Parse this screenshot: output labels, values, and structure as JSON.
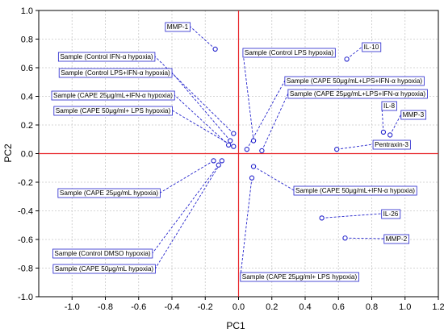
{
  "chart_data": {
    "type": "scatter",
    "title": "",
    "xlabel": "PC1",
    "ylabel": "PC2",
    "xlim": [
      -1.2,
      1.2
    ],
    "ylim": [
      -1.0,
      1.0
    ],
    "xticks": [
      "-1.0",
      "-0.8",
      "-0.6",
      "-0.4",
      "-0.2",
      "0.0",
      "0.2",
      "0.4",
      "0.6",
      "0.8",
      "1.0",
      "1.2"
    ],
    "yticks": [
      "1.0",
      "0.8",
      "0.6",
      "0.4",
      "0.2",
      "0.0",
      "-0.2",
      "-0.4",
      "-0.6",
      "-0.8",
      "-1.0"
    ],
    "grid": true,
    "reference_lines": {
      "x": 0,
      "y": 0,
      "color": "#e8262a"
    },
    "point_color": "#2222cc",
    "points": [
      {
        "label": "MMP-1",
        "x": -0.14,
        "y": 0.73
      },
      {
        "label": "IL-10",
        "x": 0.65,
        "y": 0.66
      },
      {
        "label": "IL-8",
        "x": 0.87,
        "y": 0.15
      },
      {
        "label": "MMP-3",
        "x": 0.91,
        "y": 0.13
      },
      {
        "label": "Pentraxin-3",
        "x": 0.59,
        "y": 0.03
      },
      {
        "label": "IL-26",
        "x": 0.5,
        "y": -0.45
      },
      {
        "label": "MMP-2",
        "x": 0.64,
        "y": -0.59
      },
      {
        "label": "Sample (Control IFN-α hypoxia)",
        "x": -0.03,
        "y": 0.14
      },
      {
        "label": "Sample (Control LPS+IFN-α hypoxia)",
        "x": -0.05,
        "y": 0.09
      },
      {
        "label": "Sample (CAPE 25μg/mL+IFN-α hypoxia)",
        "x": -0.06,
        "y": 0.06
      },
      {
        "label": "Sample (CAPE 50μg/ml+ LPS hypoxia)",
        "x": -0.03,
        "y": 0.05
      },
      {
        "label": "Sample (Control LPS hypoxia)",
        "x": 0.09,
        "y": 0.09
      },
      {
        "label": "Sample (CAPE 50μg/mL+LPS+IFN-α hypoxia)",
        "x": 0.05,
        "y": 0.03
      },
      {
        "label": "Sample (CAPE 25μg/mL+LPS+IFN-α hypoxia)",
        "x": 0.14,
        "y": 0.02
      },
      {
        "label": "Sample (CAPE 25μg/mL hypoxia)",
        "x": -0.15,
        "y": -0.05
      },
      {
        "label": "Sample (Control DMSO hypoxia)",
        "x": -0.12,
        "y": -0.08
      },
      {
        "label": "Sample (CAPE 50μg/mL hypoxia)",
        "x": -0.1,
        "y": -0.05
      },
      {
        "label": "Sample (CAPE 50μg/mL+IFN-α hypoxia)",
        "x": 0.09,
        "y": -0.09
      },
      {
        "label": "Sample (CAPE 25μg/ml+ LPS hypoxia)",
        "x": 0.08,
        "y": -0.17
      }
    ]
  }
}
